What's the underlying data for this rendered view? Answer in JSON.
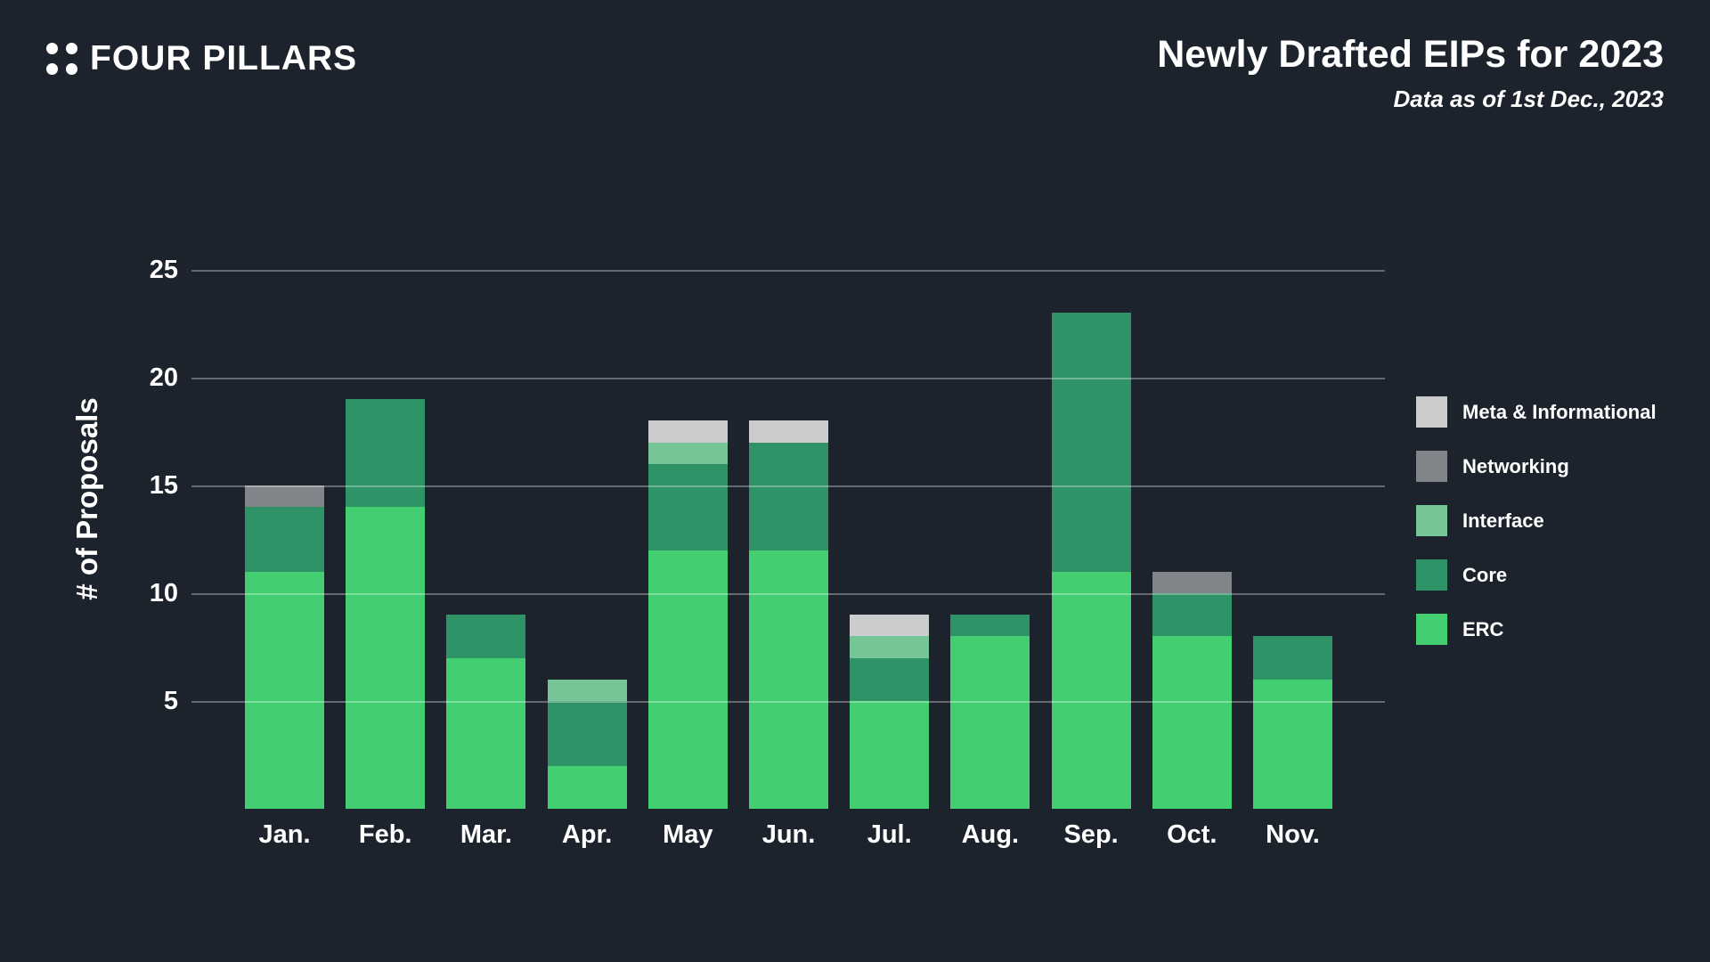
{
  "header": {
    "brand": "FOUR PILLARS",
    "title": "Newly Drafted EIPs for 2023",
    "subtitle": "Data as of 1st Dec., 2023"
  },
  "colors": {
    "background": "#1c232d",
    "text": "#ffffff",
    "gridline": "rgba(255,255,255,0.32)"
  },
  "chart_data": {
    "type": "bar",
    "stacked": true,
    "title": "Newly Drafted EIPs for 2023",
    "subtitle": "Data as of 1st Dec., 2023",
    "xlabel": "",
    "ylabel": "# of Proposals",
    "yticks": [
      5,
      10,
      15,
      20,
      25
    ],
    "ylim": [
      0,
      26
    ],
    "grid": true,
    "legend_position": "right",
    "legend_order_top_to_bottom": [
      "Meta & Informational",
      "Networking",
      "Interface",
      "Core",
      "ERC"
    ],
    "categories": [
      "Jan.",
      "Feb.",
      "Mar.",
      "Apr.",
      "May",
      "Jun.",
      "Jul.",
      "Aug.",
      "Sep.",
      "Oct.",
      "Nov."
    ],
    "series": [
      {
        "name": "ERC",
        "color": "#42ce71",
        "values": [
          11,
          14,
          7,
          2,
          12,
          12,
          5,
          8,
          11,
          8,
          6
        ]
      },
      {
        "name": "Core",
        "color": "#2e9366",
        "values": [
          3,
          5,
          2,
          3,
          4,
          5,
          2,
          1,
          12,
          2,
          2
        ]
      },
      {
        "name": "Interface",
        "color": "#75c597",
        "values": [
          0,
          0,
          0,
          1,
          1,
          0,
          1,
          0,
          0,
          0,
          0
        ]
      },
      {
        "name": "Networking",
        "color": "#818488",
        "values": [
          1,
          0,
          0,
          0,
          0,
          0,
          0,
          0,
          0,
          1,
          0
        ]
      },
      {
        "name": "Meta & Informational",
        "color": "#cacccd",
        "values": [
          0,
          0,
          0,
          0,
          1,
          1,
          1,
          0,
          0,
          0,
          0
        ]
      }
    ],
    "totals": [
      15,
      19,
      9,
      6,
      18,
      18,
      9,
      9,
      23,
      11,
      8
    ]
  }
}
